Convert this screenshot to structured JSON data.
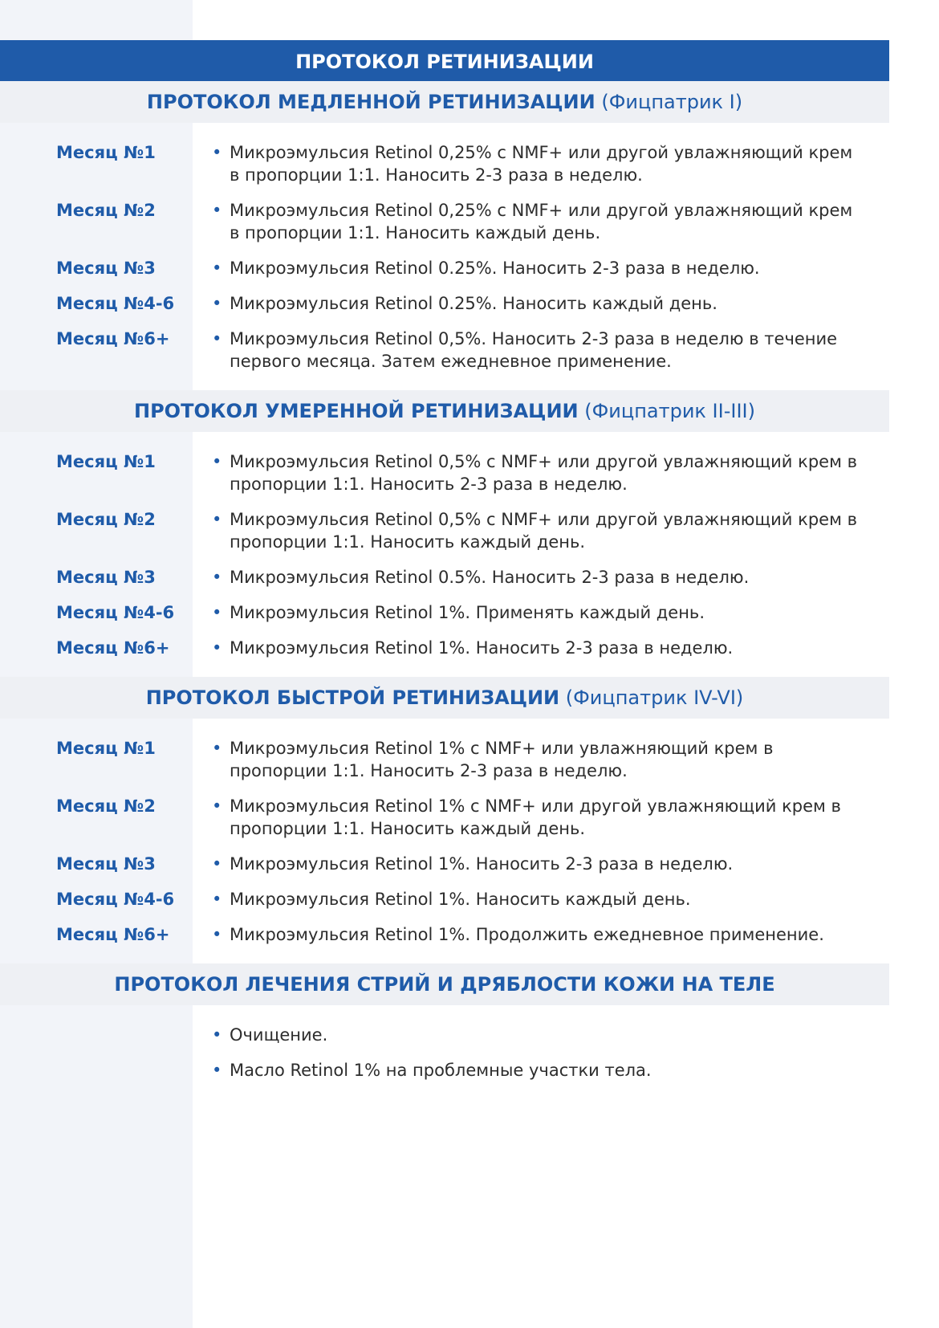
{
  "title": "ПРОТОКОЛ РЕТИНИЗАЦИИ",
  "accent_color": "#1f5ba9",
  "sections": [
    {
      "title_bold": "ПРОТОКОЛ МЕДЛЕННОЙ РЕТИНИЗАЦИИ",
      "title_note": "(Фицпатрик I)",
      "rows": [
        {
          "month": "Месяц №1",
          "text": "Микроэмульсия Retinol 0,25% с NMF+ или другой увлажняющий крем в пропорции 1:1. Наносить 2-3 раза в неделю."
        },
        {
          "month": "Месяц №2",
          "text": "Микроэмульсия Retinol 0,25% с NMF+ или другой увлажняющий крем в пропорции 1:1. Наносить каждый день."
        },
        {
          "month": "Месяц №3",
          "text": "Микроэмульсия Retinol 0.25%. Наносить 2-3 раза в неделю."
        },
        {
          "month": "Месяц №4-6",
          "text": "Микроэмульсия Retinol 0.25%. Наносить каждый день."
        },
        {
          "month": "Месяц №6+",
          "text": "Микроэмульсия Retinol 0,5%. Наносить 2-3 раза в неделю в течение первого месяца. Затем ежедневное применение."
        }
      ]
    },
    {
      "title_bold": "ПРОТОКОЛ УМЕРЕННОЙ РЕТИНИЗАЦИИ",
      "title_note": "(Фицпатрик II-III)",
      "rows": [
        {
          "month": "Месяц №1",
          "text": "Микроэмульсия Retinol 0,5% с NMF+ или другой увлажняющий крем в пропорции 1:1. Наносить 2-3 раза в неделю."
        },
        {
          "month": "Месяц №2",
          "text": "Микроэмульсия Retinol 0,5% с NMF+ или другой увлажняющий крем в пропорции 1:1. Наносить каждый день."
        },
        {
          "month": "Месяц №3",
          "text": "Микроэмульсия Retinol 0.5%. Наносить 2-3 раза в неделю."
        },
        {
          "month": "Месяц №4-6",
          "text": "Микроэмульсия Retinol 1%. Применять каждый день."
        },
        {
          "month": "Месяц №6+",
          "text": "Микроэмульсия Retinol 1%. Наносить 2-3 раза в неделю."
        }
      ]
    },
    {
      "title_bold": "ПРОТОКОЛ БЫСТРОЙ РЕТИНИЗАЦИИ",
      "title_note": "(Фицпатрик IV-VI)",
      "rows": [
        {
          "month": "Месяц №1",
          "text": "Микроэмульсия Retinol 1% с NMF+ или увлажняющий крем в пропорции 1:1. Наносить 2-3 раза в неделю."
        },
        {
          "month": "Месяц №2",
          "text": "Микроэмульсия Retinol 1% с NMF+ или другой увлажняющий крем в пропорции 1:1. Наносить каждый день."
        },
        {
          "month": "Месяц №3",
          "text": "Микроэмульсия Retinol 1%. Наносить 2-3 раза в неделю."
        },
        {
          "month": "Месяц №4-6",
          "text": "Микроэмульсия Retinol 1%. Наносить каждый день."
        },
        {
          "month": "Месяц №6+",
          "text": "Микроэмульсия Retinol 1%. Продолжить ежедневное применение."
        }
      ]
    },
    {
      "title_bold": "ПРОТОКОЛ ЛЕЧЕНИЯ СТРИЙ И ДРЯБЛОСТИ КОЖИ НА ТЕЛЕ",
      "rows": [
        {
          "text": "Очищение."
        },
        {
          "text": "Масло Retinol 1% на проблемные участки тела."
        }
      ]
    }
  ]
}
